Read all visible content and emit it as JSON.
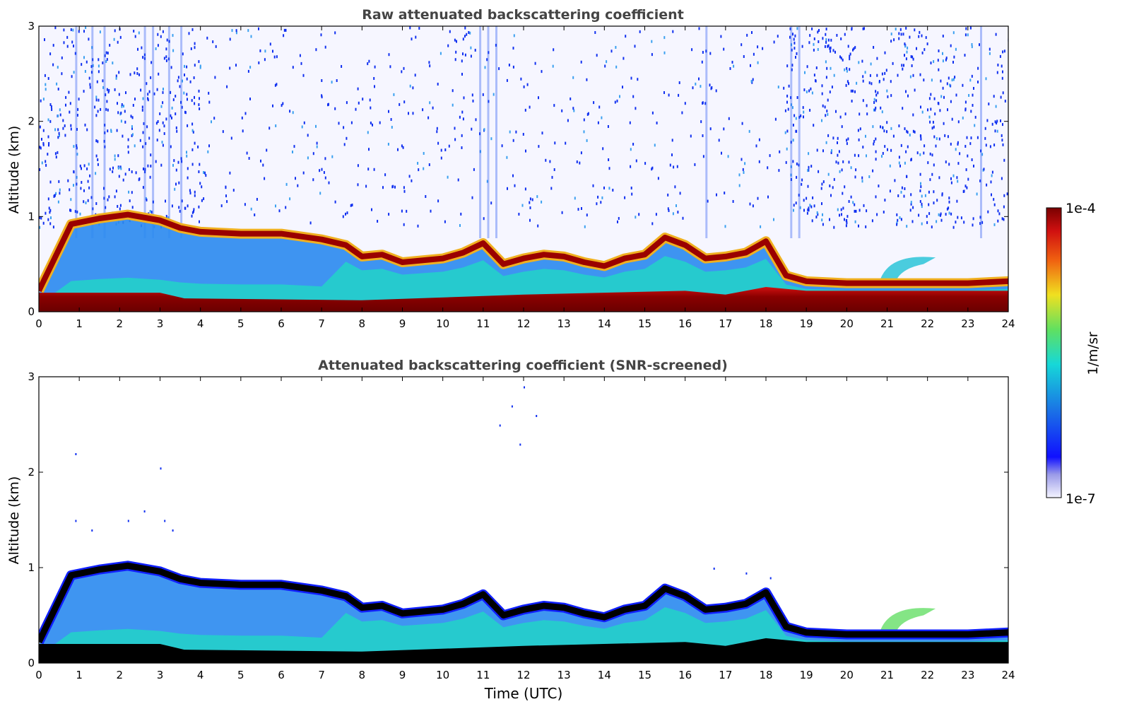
{
  "figure": {
    "colorbar": {
      "label": "1/m/sr",
      "max_label": "1e-4",
      "min_label": "1e-7",
      "scale": "log",
      "range": [
        1e-07,
        0.0001
      ],
      "colormap": "jet-like (white-blue-cyan-green-yellow-red-darkred)"
    }
  },
  "chart_data": [
    {
      "type": "heatmap",
      "title": "Raw attenuated backscattering coefficient",
      "xlabel": "",
      "ylabel": "Altitude (km)",
      "xlim": [
        0,
        24
      ],
      "ylim": [
        0,
        3
      ],
      "xticks": [
        "0",
        "1",
        "2",
        "3",
        "4",
        "5",
        "6",
        "7",
        "8",
        "9",
        "10",
        "11",
        "12",
        "13",
        "14",
        "15",
        "16",
        "17",
        "18",
        "19",
        "20",
        "21",
        "22",
        "23",
        "24"
      ],
      "yticks": [
        "0",
        "1",
        "2",
        "3"
      ],
      "layer_top_km": [
        [
          0,
          0.22
        ],
        [
          0.8,
          0.92
        ],
        [
          1.5,
          0.98
        ],
        [
          2.2,
          1.02
        ],
        [
          3,
          0.96
        ],
        [
          3.5,
          0.88
        ],
        [
          4,
          0.84
        ],
        [
          5,
          0.82
        ],
        [
          6,
          0.82
        ],
        [
          7,
          0.76
        ],
        [
          7.6,
          0.7
        ],
        [
          8,
          0.58
        ],
        [
          8.5,
          0.6
        ],
        [
          9,
          0.52
        ],
        [
          10,
          0.56
        ],
        [
          10.5,
          0.62
        ],
        [
          11,
          0.72
        ],
        [
          11.5,
          0.5
        ],
        [
          12,
          0.56
        ],
        [
          12.5,
          0.6
        ],
        [
          13,
          0.58
        ],
        [
          13.5,
          0.52
        ],
        [
          14,
          0.48
        ],
        [
          14.5,
          0.56
        ],
        [
          15,
          0.6
        ],
        [
          15.5,
          0.78
        ],
        [
          16,
          0.7
        ],
        [
          16.5,
          0.56
        ],
        [
          17,
          0.58
        ],
        [
          17.5,
          0.62
        ],
        [
          18,
          0.74
        ],
        [
          18.5,
          0.38
        ],
        [
          19,
          0.32
        ],
        [
          20,
          0.3
        ],
        [
          21,
          0.3
        ],
        [
          22,
          0.3
        ],
        [
          23,
          0.3
        ],
        [
          24,
          0.32
        ]
      ],
      "boundary_layer_top_km": [
        [
          0,
          0.2
        ],
        [
          3,
          0.2
        ],
        [
          3.6,
          0.14
        ],
        [
          8,
          0.12
        ],
        [
          12,
          0.18
        ],
        [
          16,
          0.22
        ],
        [
          17,
          0.18
        ],
        [
          18,
          0.26
        ],
        [
          19,
          0.22
        ],
        [
          24,
          0.22
        ]
      ],
      "feature_21_22": {
        "time_start": 20.8,
        "time_end": 22.2,
        "altitude_top_km": 0.62
      }
    },
    {
      "type": "heatmap",
      "title": "Attenuated backscattering coefficient (SNR-screened)",
      "xlabel": "Time (UTC)",
      "ylabel": "Altitude (km)",
      "xlim": [
        0,
        24
      ],
      "ylim": [
        0,
        3
      ],
      "xticks": [
        "0",
        "1",
        "2",
        "3",
        "4",
        "5",
        "6",
        "7",
        "8",
        "9",
        "10",
        "11",
        "12",
        "13",
        "14",
        "15",
        "16",
        "17",
        "18",
        "19",
        "20",
        "21",
        "22",
        "23",
        "24"
      ],
      "yticks": [
        "0",
        "1",
        "2",
        "3"
      ],
      "screened": true,
      "saturated_color": "#000000"
    }
  ]
}
